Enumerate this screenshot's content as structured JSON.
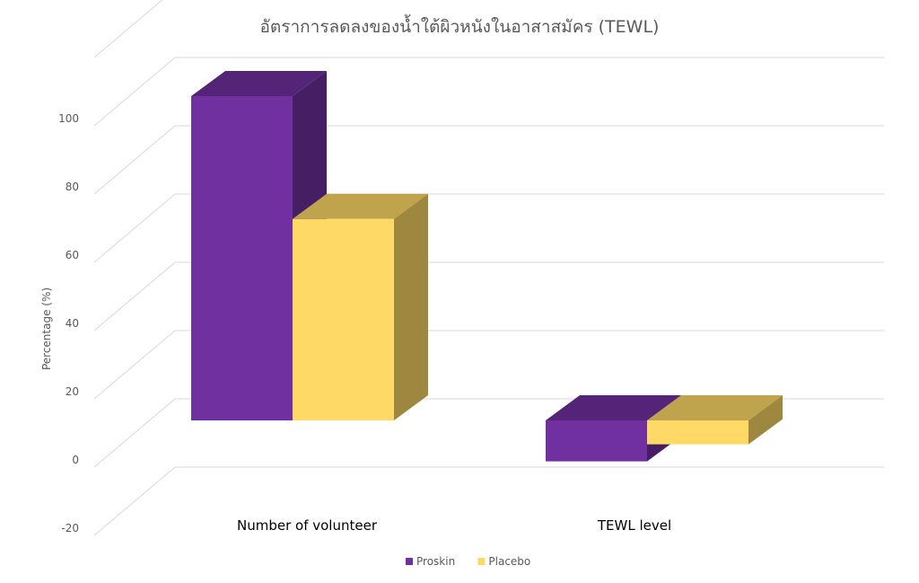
{
  "chart_data": {
    "type": "bar",
    "title": "อัตราการลดลงของน้ำใต้ผิวหนังในอาสาสมัคร (TEWL)",
    "xlabel": "",
    "ylabel": "Percentage (%)",
    "categories": [
      "Number of volunteer",
      "TEWL level"
    ],
    "series": [
      {
        "name": "Proskin",
        "values": [
          95,
          -12
        ],
        "color": "#7030A0"
      },
      {
        "name": "Placebo",
        "values": [
          59,
          -7
        ],
        "color": "#FFD966"
      }
    ],
    "ylim": [
      -20,
      100
    ],
    "yticks": [
      -20,
      0,
      20,
      40,
      60,
      80,
      100
    ],
    "grid": true,
    "legend": "bottom",
    "style": "3d-clustered-column"
  }
}
